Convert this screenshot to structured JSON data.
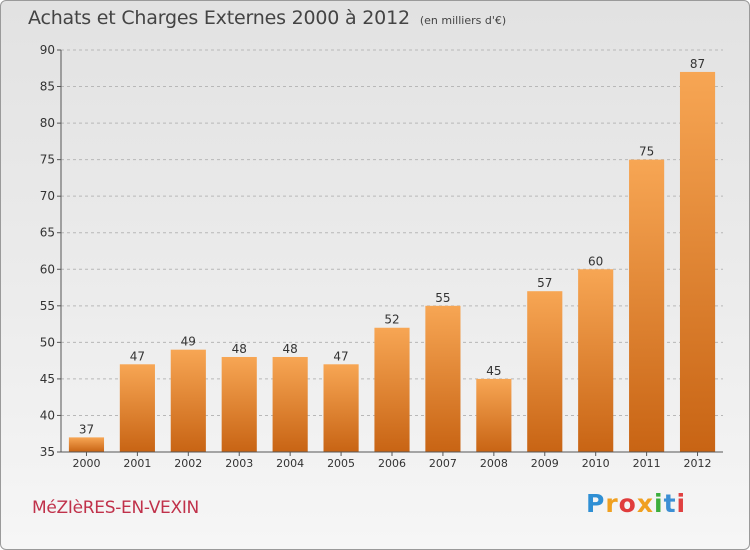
{
  "header": {
    "title": "Achats et Charges Externes 2000 à 2012",
    "unit": "(en milliers d'€)"
  },
  "footer": {
    "town": "MéZIèRES-EN-VEXIN",
    "logo_letters": [
      "P",
      "r",
      "o",
      "x",
      "i",
      "t",
      "i"
    ],
    "logo_colors": [
      "#2f8fd4",
      "#f0a020",
      "#e03c3c",
      "#f0a020",
      "#3cae3c",
      "#3c8fd4",
      "#e04040"
    ]
  },
  "chart_data": {
    "type": "bar",
    "title": "Achats et Charges Externes 2000 à 2012",
    "subtitle": "(en milliers d'€)",
    "categories": [
      "2000",
      "2001",
      "2002",
      "2003",
      "2004",
      "2005",
      "2006",
      "2007",
      "2008",
      "2009",
      "2010",
      "2011",
      "2012"
    ],
    "values": [
      37,
      47,
      49,
      48,
      48,
      47,
      52,
      55,
      45,
      57,
      60,
      75,
      87
    ],
    "ylim": [
      35,
      90
    ],
    "yticks": [
      35,
      40,
      45,
      50,
      55,
      60,
      65,
      70,
      75,
      80,
      85,
      90
    ],
    "grid": true,
    "colors": {
      "bar_top": "#f7a654",
      "bar_bottom": "#c86414"
    }
  }
}
